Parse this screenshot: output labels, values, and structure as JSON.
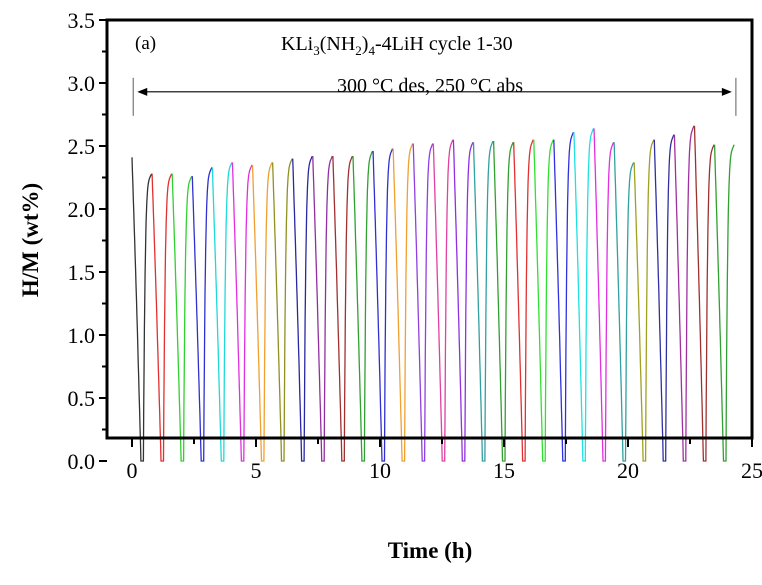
{
  "chart_data": {
    "type": "line",
    "panel_label": "(a)",
    "title_parts": {
      "pre": "KLi",
      "sub1": "3",
      "mid1": "(NH",
      "sub2": "2",
      "mid2": ")",
      "sub3": "4",
      "post": "-4LiH  cycle 1-30"
    },
    "subtitle": "300 °C des,  250 °C abs",
    "xlabel": "Time (h)",
    "ylabel": "H/M (wt%)",
    "xlim": [
      -0.5,
      25
    ],
    "ylim": [
      -0.25,
      3.5
    ],
    "xticks": [
      0,
      5,
      10,
      15,
      20,
      25
    ],
    "xtick_labels": [
      "0",
      "5",
      "10",
      "15",
      "20",
      "25"
    ],
    "yticks": [
      0.0,
      0.5,
      1.0,
      1.5,
      2.0,
      2.5,
      3.0,
      3.5
    ],
    "ytick_labels": [
      "0.0",
      "0.5",
      "1.0",
      "1.5",
      "2.0",
      "2.5",
      "3.0",
      "3.5"
    ],
    "grid": false,
    "annotation_range": {
      "x_start": 0.05,
      "x_end": 24.35,
      "y": 2.93,
      "text": "300 °C des,  250 °C abs"
    },
    "cycle_period_h": 0.81,
    "series": [
      {
        "name": "cycle 1",
        "start": 0.0,
        "peak": 2.41,
        "color": "#333333"
      },
      {
        "name": "cycle 2",
        "start": 0.81,
        "peak": 2.28,
        "color": "#e03030"
      },
      {
        "name": "cycle 3",
        "start": 1.62,
        "peak": 2.28,
        "color": "#30d030"
      },
      {
        "name": "cycle 4",
        "start": 2.43,
        "peak": 2.26,
        "color": "#3030d0"
      },
      {
        "name": "cycle 5",
        "start": 3.24,
        "peak": 2.33,
        "color": "#20d8d8"
      },
      {
        "name": "cycle 6",
        "start": 4.05,
        "peak": 2.37,
        "color": "#e030e0"
      },
      {
        "name": "cycle 7",
        "start": 4.86,
        "peak": 2.35,
        "color": "#f0a030"
      },
      {
        "name": "cycle 8",
        "start": 5.67,
        "peak": 2.37,
        "color": "#909020"
      },
      {
        "name": "cycle 9",
        "start": 6.48,
        "peak": 2.4,
        "color": "#2828a0"
      },
      {
        "name": "cycle 10",
        "start": 7.29,
        "peak": 2.42,
        "color": "#9030a0"
      },
      {
        "name": "cycle 11",
        "start": 8.1,
        "peak": 2.42,
        "color": "#a03030"
      },
      {
        "name": "cycle 12",
        "start": 8.91,
        "peak": 2.42,
        "color": "#30a030"
      },
      {
        "name": "cycle 13",
        "start": 9.72,
        "peak": 2.46,
        "color": "#3030d0"
      },
      {
        "name": "cycle 14",
        "start": 10.53,
        "peak": 2.48,
        "color": "#f0a030"
      },
      {
        "name": "cycle 15",
        "start": 11.34,
        "peak": 2.52,
        "color": "#9040e0"
      },
      {
        "name": "cycle 16",
        "start": 12.15,
        "peak": 2.52,
        "color": "#e040a0"
      },
      {
        "name": "cycle 17",
        "start": 12.96,
        "peak": 2.55,
        "color": "#9030e0"
      },
      {
        "name": "cycle 18",
        "start": 13.77,
        "peak": 2.53,
        "color": "#30a0a0"
      },
      {
        "name": "cycle 19",
        "start": 14.58,
        "peak": 2.54,
        "color": "#30a030"
      },
      {
        "name": "cycle 20",
        "start": 15.39,
        "peak": 2.53,
        "color": "#e03030"
      },
      {
        "name": "cycle 21",
        "start": 16.2,
        "peak": 2.55,
        "color": "#30e030"
      },
      {
        "name": "cycle 22",
        "start": 17.01,
        "peak": 2.55,
        "color": "#3030e0"
      },
      {
        "name": "cycle 23",
        "start": 17.82,
        "peak": 2.61,
        "color": "#20e0e0"
      },
      {
        "name": "cycle 24",
        "start": 18.63,
        "peak": 2.64,
        "color": "#e030e0"
      },
      {
        "name": "cycle 25",
        "start": 19.44,
        "peak": 2.53,
        "color": "#30a0a0"
      },
      {
        "name": "cycle 26",
        "start": 20.25,
        "peak": 2.37,
        "color": "#a0a020"
      },
      {
        "name": "cycle 27",
        "start": 21.06,
        "peak": 2.55,
        "color": "#3030a0"
      },
      {
        "name": "cycle 28",
        "start": 21.87,
        "peak": 2.59,
        "color": "#a030a0"
      },
      {
        "name": "cycle 29",
        "start": 22.68,
        "peak": 2.66,
        "color": "#a03030"
      },
      {
        "name": "cycle 30",
        "start": 23.49,
        "peak": 2.51,
        "color": "#30a030"
      }
    ]
  }
}
